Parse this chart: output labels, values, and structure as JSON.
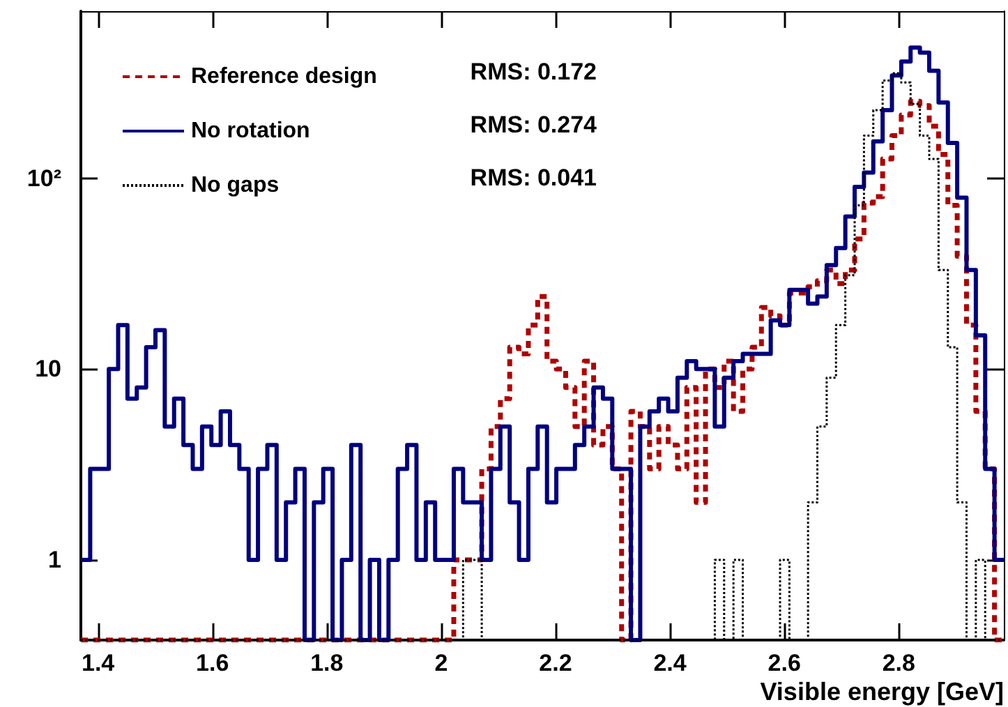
{
  "chart_data": {
    "type": "histogram",
    "xlabel": "Visible energy [GeV]",
    "bins": [
      1.37,
      1.3863,
      1.4026,
      1.4189,
      1.4352,
      1.4515,
      1.4678,
      1.4841,
      1.5004,
      1.5167,
      1.533,
      1.5493,
      1.5656,
      1.5819,
      1.5982,
      1.6145,
      1.6308,
      1.6471,
      1.6634,
      1.6797,
      1.696,
      1.7123,
      1.7286,
      1.7449,
      1.7612,
      1.7775,
      1.7938,
      1.8101,
      1.8264,
      1.8427,
      1.859,
      1.8753,
      1.8916,
      1.9079,
      1.9242,
      1.9405,
      1.9568,
      1.9731,
      1.9894,
      2.0057,
      2.022,
      2.0383,
      2.0546,
      2.0709,
      2.0872,
      2.1035,
      2.1198,
      2.1361,
      2.1524,
      2.1687,
      2.185,
      2.2013,
      2.2176,
      2.2339,
      2.2502,
      2.2665,
      2.2828,
      2.2991,
      2.3154,
      2.3317,
      2.348,
      2.3643,
      2.3806,
      2.3969,
      2.4132,
      2.4295,
      2.4458,
      2.4621,
      2.4784,
      2.4947,
      2.511,
      2.5273,
      2.5436,
      2.5599,
      2.5762,
      2.5925,
      2.6088,
      2.6251,
      2.6414,
      2.6577,
      2.674,
      2.6903,
      2.7066,
      2.7229,
      2.7392,
      2.7555,
      2.7718,
      2.7881,
      2.8044,
      2.8207,
      2.837,
      2.8533,
      2.8696,
      2.8859,
      2.9022,
      2.9185,
      2.9348,
      2.9511,
      2.9674,
      2.9837
    ],
    "series": [
      {
        "name": "Reference design",
        "color": "#b00000",
        "line_style": "dashed",
        "values": [
          null,
          null,
          null,
          null,
          null,
          null,
          null,
          null,
          null,
          null,
          null,
          null,
          null,
          null,
          null,
          null,
          null,
          null,
          null,
          null,
          null,
          null,
          null,
          null,
          null,
          null,
          null,
          null,
          null,
          null,
          null,
          null,
          null,
          null,
          null,
          null,
          null,
          null,
          null,
          null,
          1,
          1,
          1,
          3,
          5,
          7,
          13,
          12,
          17,
          24,
          11,
          10,
          8,
          5,
          11,
          4,
          5,
          3,
          null,
          6,
          5,
          3,
          5,
          4,
          3,
          8,
          2,
          10,
          8,
          11,
          6,
          10,
          13,
          21,
          19,
          17,
          25,
          25,
          27,
          29,
          33,
          28,
          33,
          48,
          74,
          80,
          126,
          167,
          214,
          253,
          240,
          187,
          133,
          72,
          39,
          17,
          6,
          3,
          null
        ]
      },
      {
        "name": "No rotation",
        "color": "#000080",
        "line_style": "solid",
        "values": [
          1,
          3,
          3,
          10,
          17,
          7,
          8,
          13,
          16,
          5,
          7,
          4,
          3,
          5,
          4,
          6,
          4,
          3,
          1,
          3,
          4,
          1,
          2,
          3,
          null,
          2,
          3,
          null,
          1,
          4,
          null,
          1,
          null,
          1,
          3,
          4,
          1,
          2,
          1,
          1,
          3,
          2,
          2,
          1,
          3,
          5,
          2,
          1,
          3,
          5,
          2,
          3,
          3,
          4,
          5,
          8,
          7,
          3,
          3,
          null,
          5,
          6,
          7,
          6,
          9,
          11,
          10,
          10,
          5,
          9,
          11,
          12,
          12,
          12,
          18,
          17,
          26,
          26,
          22,
          24,
          35,
          43,
          63,
          90,
          107,
          156,
          227,
          345,
          408,
          483,
          455,
          365,
          249,
          153,
          79,
          33,
          15,
          3,
          1
        ]
      },
      {
        "name": "No gaps",
        "color": "#000000",
        "line_style": "dotted",
        "values": [
          null,
          null,
          null,
          null,
          null,
          null,
          null,
          null,
          null,
          null,
          null,
          null,
          null,
          null,
          null,
          null,
          null,
          null,
          null,
          null,
          null,
          null,
          null,
          null,
          null,
          null,
          null,
          null,
          null,
          null,
          null,
          null,
          null,
          null,
          null,
          null,
          null,
          null,
          null,
          null,
          null,
          1,
          1,
          null,
          null,
          null,
          null,
          null,
          null,
          null,
          null,
          null,
          null,
          null,
          null,
          null,
          null,
          null,
          null,
          null,
          null,
          null,
          null,
          null,
          null,
          null,
          null,
          null,
          1,
          null,
          1,
          null,
          null,
          null,
          null,
          1,
          null,
          null,
          2,
          5,
          9,
          17,
          31,
          72,
          167,
          227,
          325,
          355,
          317,
          245,
          167,
          126,
          33,
          13,
          2,
          null,
          1,
          null,
          null
        ]
      }
    ],
    "xlim": [
      1.37,
      2.9837
    ],
    "xticks": [
      1.4,
      1.6,
      1.8,
      2,
      2.2,
      2.4,
      2.6,
      2.8
    ],
    "ylim": [
      0.38,
      750
    ],
    "yticks": [
      1,
      10,
      {
        "value": 100,
        "label": "10²"
      }
    ],
    "log": "y",
    "legend": "top left",
    "annotations": [
      "RMS: 0.172",
      "RMS: 0.274",
      "RMS: 0.041"
    ]
  }
}
